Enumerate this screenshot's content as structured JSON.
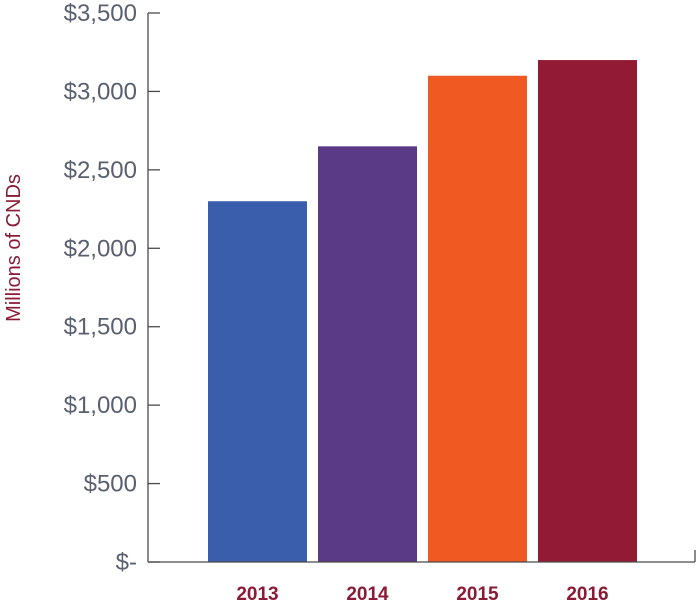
{
  "chart_data": {
    "type": "bar",
    "title": "",
    "xlabel": "",
    "ylabel": "Millions of CNDs",
    "categories": [
      "2013",
      "2014",
      "2015",
      "2016"
    ],
    "values": [
      2300,
      2650,
      3100,
      3200
    ],
    "bar_colors": [
      "#3a5eac",
      "#5a3a86",
      "#f05a22",
      "#931a35"
    ],
    "ylim": [
      0,
      3500
    ],
    "yticks": [
      0,
      500,
      1000,
      1500,
      2000,
      2500,
      3000,
      3500
    ],
    "ytick_labels": [
      "$-",
      "$500",
      "$1,000",
      "$1,500",
      "$2,000",
      "$2,500",
      "$3,000",
      "$3,500"
    ],
    "grid": false,
    "legend": "none"
  }
}
